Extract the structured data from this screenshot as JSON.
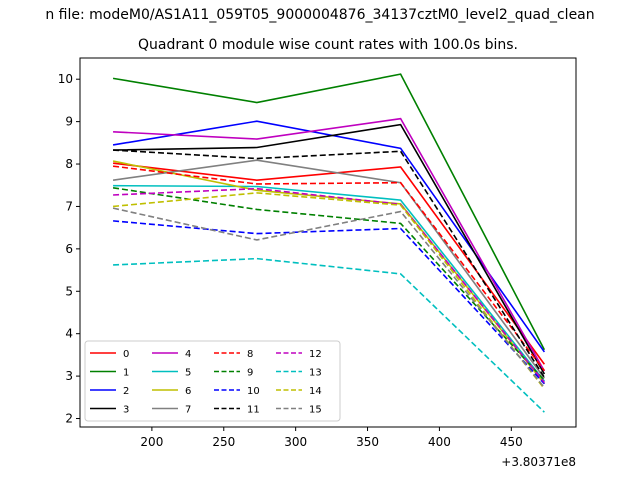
{
  "chart_data": {
    "type": "line",
    "suptitle": "n file: modeM0/AS1A11_059T05_9000004876_34137cztM0_level2_quad_clean",
    "title": "Quadrant 0 module wise count rates with 100.0s bins.",
    "xlabel": "",
    "ylabel": "",
    "x_offset_label": "+3.80371e8",
    "x": [
      173,
      273,
      373,
      473
    ],
    "xlim": [
      150,
      495
    ],
    "ylim": [
      1.8,
      10.5
    ],
    "xticks": [
      200,
      250,
      300,
      350,
      400,
      450
    ],
    "yticks": [
      2,
      3,
      4,
      5,
      6,
      7,
      8,
      9,
      10
    ],
    "grid": false,
    "legend_position": "lower-left",
    "legend_columns": 4,
    "series": [
      {
        "name": "0",
        "color": "#ff0000",
        "dash": "solid",
        "values": [
          8.02,
          7.62,
          7.93,
          3.28
        ]
      },
      {
        "name": "1",
        "color": "#008000",
        "dash": "solid",
        "values": [
          10.02,
          9.45,
          10.12,
          3.62
        ]
      },
      {
        "name": "2",
        "color": "#0000ff",
        "dash": "solid",
        "values": [
          8.45,
          9.01,
          8.37,
          3.57
        ]
      },
      {
        "name": "3",
        "color": "#000000",
        "dash": "solid",
        "values": [
          8.33,
          8.39,
          8.93,
          3.05
        ]
      },
      {
        "name": "4",
        "color": "#bf00bf",
        "dash": "solid",
        "values": [
          8.76,
          8.59,
          9.07,
          3.12
        ]
      },
      {
        "name": "5",
        "color": "#00bfbf",
        "dash": "solid",
        "values": [
          7.49,
          7.47,
          7.15,
          2.88
        ]
      },
      {
        "name": "6",
        "color": "#bfbf00",
        "dash": "solid",
        "values": [
          8.07,
          7.38,
          7.06,
          2.82
        ]
      },
      {
        "name": "7",
        "color": "#808080",
        "dash": "solid",
        "values": [
          7.62,
          8.09,
          7.56,
          2.95
        ]
      },
      {
        "name": "8",
        "color": "#ff0000",
        "dash": "dashed",
        "values": [
          7.95,
          7.53,
          7.56,
          3.13
        ]
      },
      {
        "name": "9",
        "color": "#008000",
        "dash": "dashed",
        "values": [
          7.44,
          6.93,
          6.6,
          2.9
        ]
      },
      {
        "name": "10",
        "color": "#0000ff",
        "dash": "dashed",
        "values": [
          6.66,
          6.36,
          6.48,
          2.82
        ]
      },
      {
        "name": "11",
        "color": "#000000",
        "dash": "dashed",
        "values": [
          8.33,
          8.13,
          8.3,
          2.97
        ]
      },
      {
        "name": "12",
        "color": "#bf00bf",
        "dash": "dashed",
        "values": [
          7.27,
          7.42,
          7.05,
          2.85
        ]
      },
      {
        "name": "13",
        "color": "#00bfbf",
        "dash": "dashed",
        "values": [
          5.62,
          5.77,
          5.41,
          2.15
        ]
      },
      {
        "name": "14",
        "color": "#bfbf00",
        "dash": "dashed",
        "values": [
          7.0,
          7.32,
          7.03,
          2.7
        ]
      },
      {
        "name": "15",
        "color": "#808080",
        "dash": "dashed",
        "values": [
          6.96,
          6.21,
          6.88,
          2.73
        ]
      }
    ]
  }
}
